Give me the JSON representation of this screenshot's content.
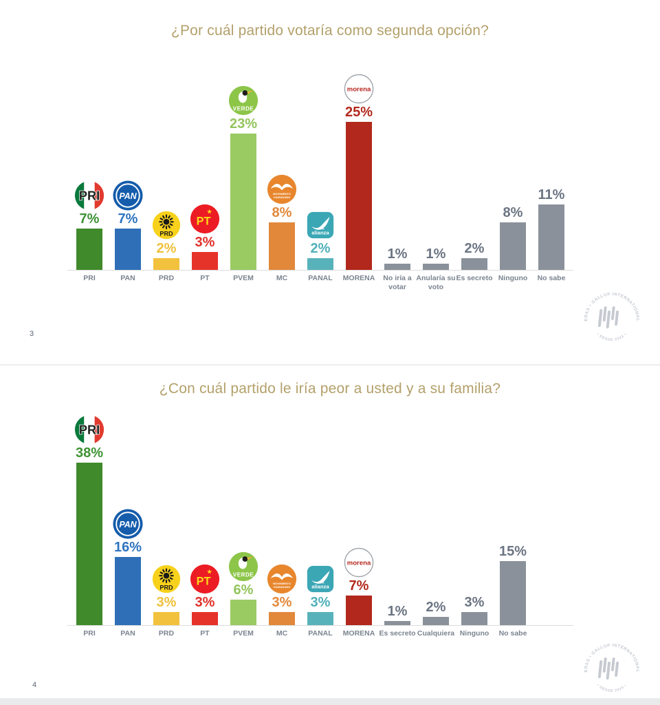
{
  "page": {
    "slide1_number": "3",
    "slide2_number": "4"
  },
  "colors": {
    "title": "#b3a06a",
    "axis_line": "#dcdcdc",
    "gray_bar": "#8a919b",
    "gray_value_label": "#6b7482",
    "category_label": "#7b8490",
    "watermark": "#c6cad1",
    "pri_green": "#408a2b",
    "pan_blue": "#2e6fb7",
    "prd_yellow": "#f2c13d",
    "pt_red": "#e6332a",
    "pvem_light_green": "#9aca62",
    "mc_orange": "#e1883b",
    "panal_teal": "#58b2ba",
    "morena_dark_red": "#b2281c"
  },
  "watermark": {
    "arc_text_top": "DE LAS HERAS • GALLUP INTERNATIONAL MEMBER",
    "arc_text_bottom": "•  DESDE 2023  •"
  },
  "chart_data": [
    {
      "type": "bar",
      "title": "¿Por cuál partido votaría como segunda opción?",
      "xlabel": "",
      "ylabel": "",
      "ylim": [
        0,
        26
      ],
      "grid": false,
      "legend": false,
      "categories": [
        "PRI",
        "PAN",
        "PRD",
        "PT",
        "PVEM",
        "MC",
        "PANAL",
        "MORENA",
        "No iría a votar",
        "Anularía su voto",
        "Es secreto",
        "Ninguno",
        "No sabe"
      ],
      "values": [
        7,
        7,
        2,
        3,
        23,
        8,
        2,
        25,
        1,
        1,
        2,
        8,
        11
      ],
      "value_labels": [
        "7%",
        "7%",
        "2%",
        "3%",
        "23%",
        "8%",
        "2%",
        "25%",
        "1%",
        "1%",
        "2%",
        "8%",
        "11%"
      ],
      "bar_colors": [
        "#408a2b",
        "#2e6fb7",
        "#f2c13d",
        "#e6332a",
        "#9aca62",
        "#e1883b",
        "#58b2ba",
        "#b2281c",
        "#8a919b",
        "#8a919b",
        "#8a919b",
        "#8a919b",
        "#8a919b"
      ],
      "label_colors": [
        "#3f9235",
        "#2e74c0",
        "#efc13c",
        "#e03028",
        "#93c45c",
        "#e1883b",
        "#4fb0ba",
        "#b2281c",
        "#6b7482",
        "#6b7482",
        "#6b7482",
        "#6b7482",
        "#6b7482"
      ],
      "logos": [
        "pri",
        "pan",
        "prd",
        "pt",
        "pvem",
        "mc",
        "panal",
        "morena",
        null,
        null,
        null,
        null,
        null
      ]
    },
    {
      "type": "bar",
      "title": "¿Con cuál partido le iría peor a usted y a su familia?",
      "xlabel": "",
      "ylabel": "",
      "ylim": [
        0,
        39
      ],
      "grid": false,
      "legend": false,
      "categories": [
        "PRI",
        "PAN",
        "PRD",
        "PT",
        "PVEM",
        "MC",
        "PANAL",
        "MORENA",
        "Es secreto",
        "Cualquiera",
        "Ninguno",
        "No sabe"
      ],
      "values": [
        38,
        16,
        3,
        3,
        6,
        3,
        3,
        7,
        1,
        2,
        3,
        15
      ],
      "value_labels": [
        "38%",
        "16%",
        "3%",
        "3%",
        "6%",
        "3%",
        "3%",
        "7%",
        "1%",
        "2%",
        "3%",
        "15%"
      ],
      "bar_colors": [
        "#408a2b",
        "#2e6fb7",
        "#f2c13d",
        "#e6332a",
        "#9aca62",
        "#e1883b",
        "#58b2ba",
        "#b2281c",
        "#8a919b",
        "#8a919b",
        "#8a919b",
        "#8a919b"
      ],
      "label_colors": [
        "#3f9235",
        "#2e74c0",
        "#efc13c",
        "#e03028",
        "#93c45c",
        "#e1883b",
        "#4fb0ba",
        "#b2281c",
        "#6b7482",
        "#6b7482",
        "#6b7482",
        "#6b7482"
      ],
      "logos": [
        "pri",
        "pan",
        "prd",
        "pt",
        "pvem",
        "mc",
        "panal",
        "morena",
        null,
        null,
        null,
        null
      ]
    }
  ]
}
